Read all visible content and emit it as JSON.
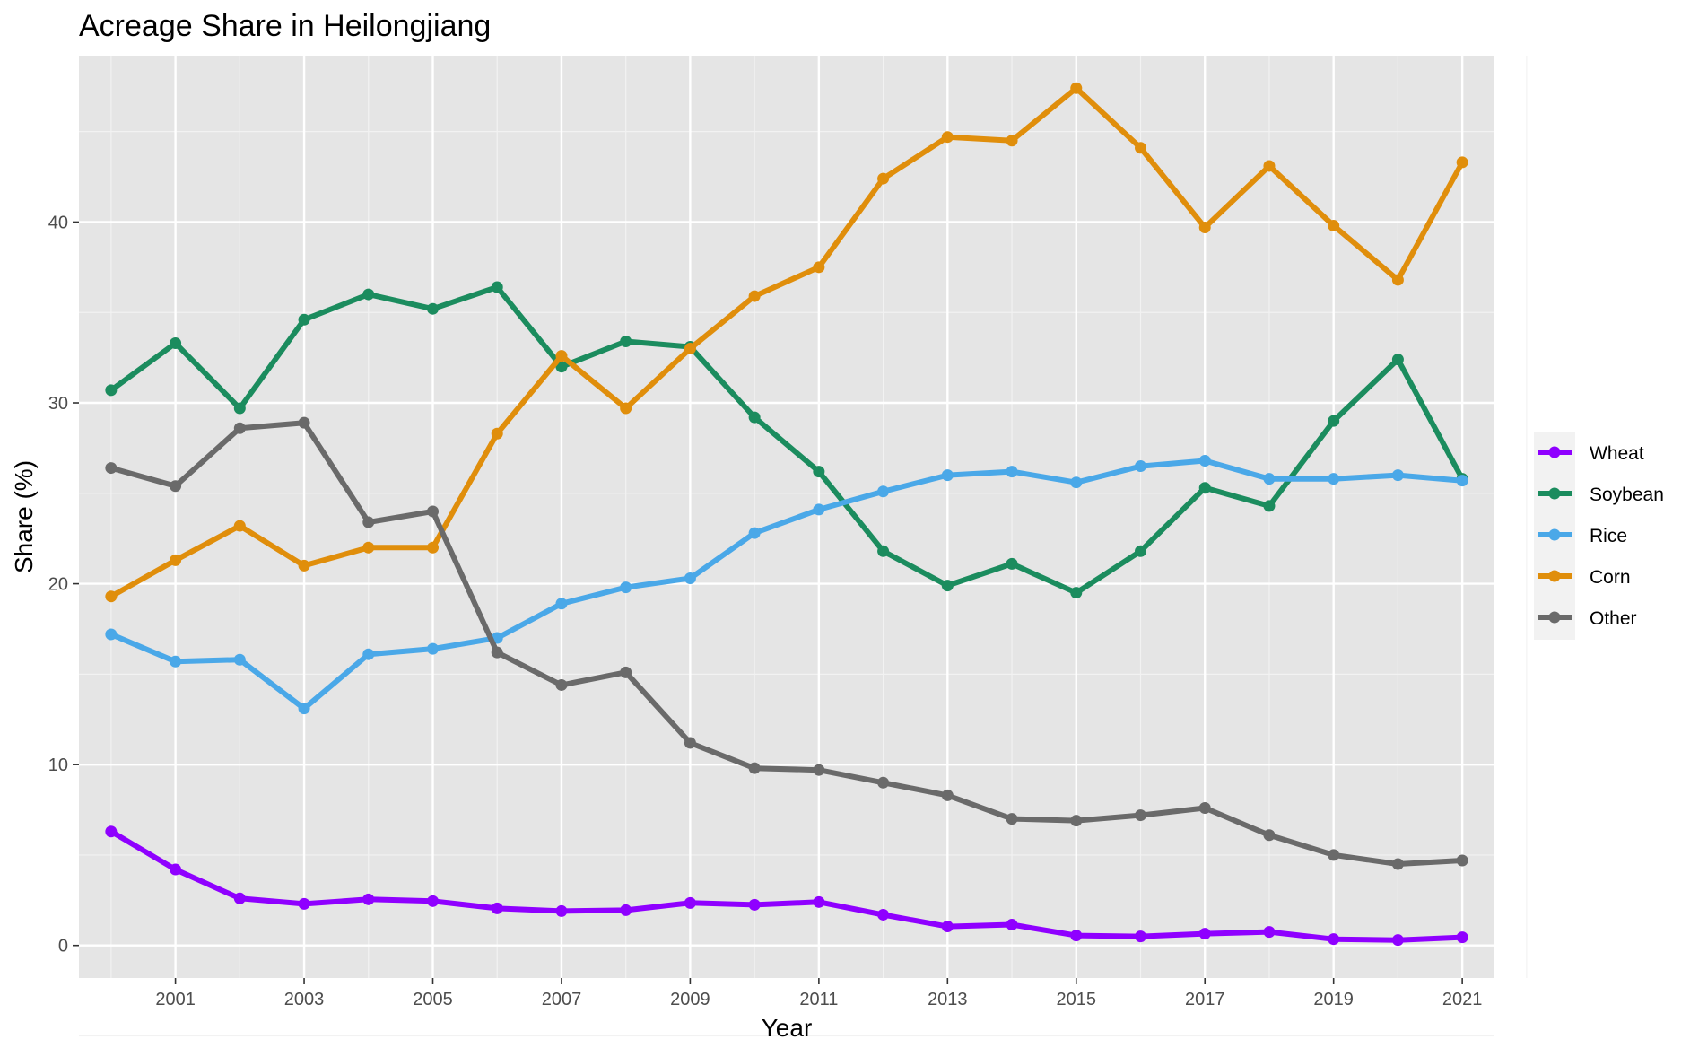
{
  "chart_data": {
    "type": "line",
    "title": "Acreage Share in Heilongjiang",
    "xlabel": "Year",
    "ylabel": "Share (%)",
    "x": [
      2000,
      2001,
      2002,
      2003,
      2004,
      2005,
      2006,
      2007,
      2008,
      2009,
      2010,
      2011,
      2012,
      2013,
      2014,
      2015,
      2016,
      2017,
      2018,
      2019,
      2020,
      2021
    ],
    "xticks": [
      "2001",
      "2003",
      "2005",
      "2007",
      "2009",
      "2011",
      "2013",
      "2015",
      "2017",
      "2019",
      "2021"
    ],
    "yticks": [
      "0",
      "10",
      "20",
      "30",
      "40"
    ],
    "xlim": [
      1999.5,
      2021.5
    ],
    "ylim": [
      -1.8,
      49.2
    ],
    "grid": true,
    "legend_position": "right",
    "series": [
      {
        "name": "Wheat",
        "color": "#8f00ff",
        "values": [
          6.3,
          4.2,
          2.6,
          2.3,
          2.55,
          2.45,
          2.05,
          1.9,
          1.95,
          2.35,
          2.25,
          2.4,
          1.7,
          1.05,
          1.15,
          0.55,
          0.5,
          0.65,
          0.75,
          0.35,
          0.3,
          0.45
        ]
      },
      {
        "name": "Soybean",
        "color": "#1b8c5e",
        "values": [
          30.7,
          33.3,
          29.7,
          34.6,
          36.0,
          35.2,
          36.4,
          32.0,
          33.4,
          33.1,
          29.2,
          26.2,
          21.8,
          19.9,
          21.1,
          19.5,
          21.8,
          25.3,
          24.3,
          29.0,
          32.4,
          25.8
        ]
      },
      {
        "name": "Rice",
        "color": "#4aa8e8",
        "values": [
          17.2,
          15.7,
          15.8,
          13.1,
          16.1,
          16.4,
          17.0,
          18.9,
          19.8,
          20.3,
          22.8,
          24.1,
          25.1,
          26.0,
          26.2,
          25.6,
          26.5,
          26.8,
          25.8,
          25.8,
          26.0,
          25.7
        ]
      },
      {
        "name": "Corn",
        "color": "#e08e0b",
        "values": [
          19.3,
          21.3,
          23.2,
          21.0,
          22.0,
          22.0,
          28.3,
          32.6,
          29.7,
          33.0,
          35.9,
          37.5,
          42.4,
          44.7,
          44.5,
          47.4,
          44.1,
          39.7,
          43.1,
          39.8,
          36.8,
          43.3
        ]
      },
      {
        "name": "Other",
        "color": "#6a6a6a",
        "values": [
          26.4,
          25.4,
          28.6,
          28.9,
          23.4,
          24.0,
          16.2,
          14.4,
          15.1,
          11.2,
          9.8,
          9.7,
          9.0,
          8.3,
          7.0,
          6.9,
          7.2,
          7.6,
          6.1,
          5.0,
          4.5,
          4.7
        ]
      }
    ]
  }
}
